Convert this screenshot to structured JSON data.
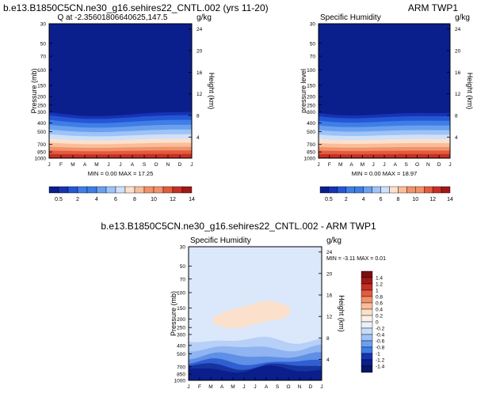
{
  "page": {
    "top_title": "b.e13.B1850C5CN.ne30_g16.sehires22_CNTL.002 (yrs 11-20)",
    "bottom_title": "b.e13.B1850C5CN.ne30_g16.sehires22_CNTL.002 - ARM TWP1"
  },
  "chart_data": [
    {
      "type": "heatmap",
      "title_left": "Q at -2.35601806640625,147.5",
      "title_right": "",
      "units": "g/kg",
      "ylabel": "Pressure (mb)",
      "ylabel_right": "Height (km)",
      "months": [
        "J",
        "F",
        "M",
        "A",
        "M",
        "J",
        "J",
        "A",
        "S",
        "O",
        "N",
        "D",
        "J"
      ],
      "pressure_ticks": [
        30,
        50,
        70,
        100,
        150,
        200,
        250,
        300,
        400,
        500,
        700,
        850,
        1000
      ],
      "height_ticks": [
        4,
        8,
        12,
        16,
        20,
        24
      ],
      "stats_text": "MIN =   0.00 MAX =  17.25",
      "min": 0.0,
      "max": 17.25,
      "colorbar_labels": [
        "0.5",
        "2",
        "4",
        "6",
        "8",
        "10",
        "12",
        "14"
      ],
      "colors": {
        "low": "#0a1e8c",
        "high": "#a01818"
      }
    },
    {
      "type": "heatmap",
      "title_left": "Specific Humidity",
      "title_right": "ARM TWP1",
      "units": "g/kg",
      "ylabel": "pressure level",
      "ylabel_right": "Height (km)",
      "months": [
        "J",
        "F",
        "M",
        "A",
        "M",
        "J",
        "J",
        "A",
        "S",
        "O",
        "N",
        "D",
        "J"
      ],
      "pressure_ticks": [
        30,
        50,
        70,
        100,
        150,
        200,
        250,
        300,
        400,
        500,
        700,
        850,
        1000
      ],
      "height_ticks": [
        4,
        8,
        12,
        16,
        20,
        24
      ],
      "stats_text": "MIN =   0.00 MAX =  18.97",
      "min": 0.0,
      "max": 18.97,
      "colorbar_labels": [
        "0.5",
        "2",
        "4",
        "6",
        "8",
        "10",
        "12",
        "14"
      ],
      "colors": {
        "low": "#0a1e8c",
        "high": "#a01818"
      }
    },
    {
      "type": "heatmap",
      "title_left": "Specific Humidity",
      "title_right": "",
      "units": "g/kg",
      "ylabel": "Pressure (mb)",
      "ylabel_right": "Height (km)",
      "months": [
        "J",
        "F",
        "M",
        "A",
        "M",
        "J",
        "J",
        "A",
        "S",
        "O",
        "N",
        "D",
        "J"
      ],
      "pressure_ticks": [
        30,
        50,
        70,
        100,
        150,
        200,
        250,
        300,
        400,
        500,
        700,
        850,
        1000
      ],
      "height_ticks": [
        4,
        8,
        12,
        16,
        20,
        24
      ],
      "stats_text": "MIN =  -3.11 MAX =   0.01",
      "min": -3.11,
      "max": 0.01,
      "colorbar_labels": [
        "1.4",
        "1.2",
        "1",
        "0.8",
        "0.6",
        "0.4",
        "0.2",
        "0",
        "-0.2",
        "-0.4",
        "-0.6",
        "-0.8",
        "-1",
        "-1.2",
        "-1.4"
      ],
      "colors": {
        "background": "#dbe8fb",
        "warm": "#fbe1cc",
        "deep": "#0a1e8c"
      }
    }
  ]
}
